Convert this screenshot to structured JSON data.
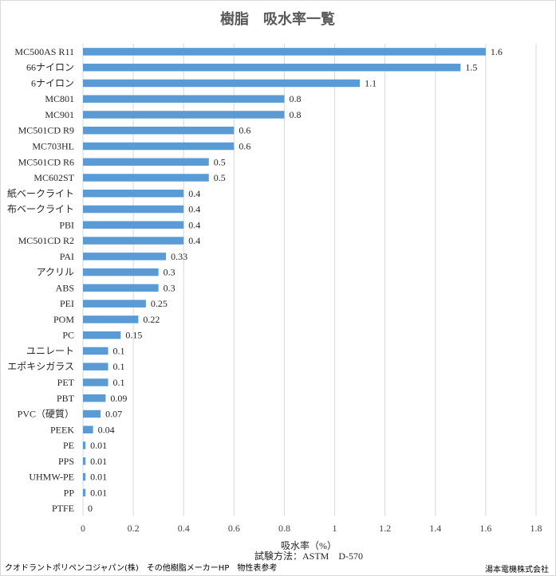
{
  "chart_data": {
    "type": "bar",
    "orientation": "horizontal",
    "title": "樹脂　吸水率一覧",
    "xlabel": "吸水率（%）",
    "subtitle_below_axis": "試験方法：ASTM　D-570",
    "xlim": [
      0,
      1.8
    ],
    "xticks": [
      "0",
      "0.2",
      "0.4",
      "0.6",
      "0.8",
      "1",
      "1.2",
      "1.4",
      "1.6",
      "1.8"
    ],
    "grid": true,
    "bar_color": "#5b9bd5",
    "categories": [
      "MC500AS R11",
      "66ナイロン",
      "6ナイロン",
      "MC801",
      "MC901",
      "MC501CD R9",
      "MC703HL",
      "MC501CD R6",
      "MC602ST",
      "紙ベークライト",
      "布ベークライト",
      "PBI",
      "MC501CD R2",
      "PAI",
      "アクリル",
      "ABS",
      "PEI",
      "POM",
      "PC",
      "ユニレート",
      "エポキシガラス",
      "PET",
      "PBT",
      "PVC（硬質）",
      "PEEK",
      "PE",
      "PPS",
      "UHMW-PE",
      "PP",
      "PTFE"
    ],
    "values": [
      1.6,
      1.5,
      1.1,
      0.8,
      0.8,
      0.6,
      0.6,
      0.5,
      0.5,
      0.4,
      0.4,
      0.4,
      0.4,
      0.33,
      0.3,
      0.3,
      0.25,
      0.22,
      0.15,
      0.1,
      0.1,
      0.1,
      0.09,
      0.07,
      0.04,
      0.01,
      0.01,
      0.01,
      0.01,
      0
    ],
    "data_labels": [
      "1.6",
      "1.5",
      "1.1",
      "0.8",
      "0.8",
      "0.6",
      "0.6",
      "0.5",
      "0.5",
      "0.4",
      "0.4",
      "0.4",
      "0.4",
      "0.33",
      "0.3",
      "0.3",
      "0.25",
      "0.22",
      "0.15",
      "0.1",
      "0.1",
      "0.1",
      "0.09",
      "0.07",
      "0.04",
      "0.01",
      "0.01",
      "0.01",
      "0.01",
      "0"
    ]
  },
  "footer": {
    "source": "クオドラントポリペンコジャパン(株)　その他樹脂メーカーHP　物性表参考",
    "company": "湯本電機株式会社"
  },
  "colors": {
    "bar": "#5b9bd5",
    "grid": "#d9d9d9",
    "title": "#595959"
  }
}
